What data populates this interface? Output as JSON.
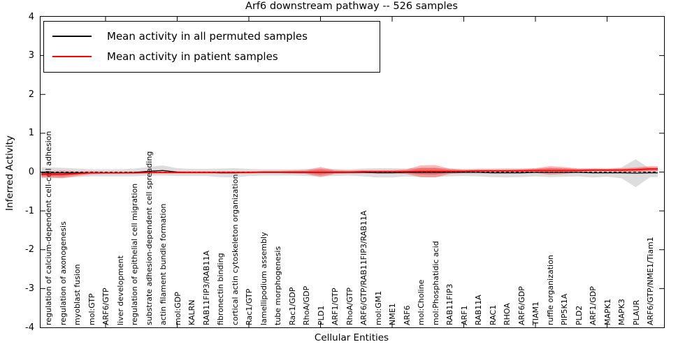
{
  "title": "Arf6 downstream pathway -- 526 samples",
  "y_axis": {
    "label": "Inferred Activity",
    "tick_labels": [
      "4",
      "3",
      "2",
      "1",
      "0",
      "-1",
      "-2",
      "-3",
      "-4"
    ],
    "range": [
      -4,
      4
    ]
  },
  "x_axis": {
    "label": "Cellular Entities"
  },
  "legend": {
    "items": [
      {
        "label": "Mean activity in all permuted samples",
        "color": "#000000"
      },
      {
        "label": "Mean activity in patient samples",
        "color": "#ff0000"
      }
    ]
  },
  "chart_data": {
    "type": "area",
    "subtype": "violin-band-with-mean-lines",
    "title": "Arf6 downstream pathway -- 526 samples",
    "xlabel": "Cellular Entities",
    "ylabel": "Inferred Activity",
    "ylim": [
      -4,
      4
    ],
    "grid": false,
    "legend_position": "upper-left",
    "zero_line": "dashed-black",
    "categories": [
      "regulation of calcium-dependent cell-cell adhesion",
      "regulation of axonogenesis",
      "myoblast fusion",
      "mol:GTP",
      "ARF6/GTP",
      "liver development",
      "regulation of epithelial cell migration",
      "substrate adhesion-dependent cell spreading",
      "actin filament bundle formation",
      "mol:GDP",
      "KALRN",
      "RAB11FIP3/RAB11A",
      "fibronectin binding",
      "cortical actin cytoskeleton organization",
      "Rac1/GTP",
      "lamellipodium assembly",
      "tube morphogenesis",
      "Rac1/GDP",
      "RhoA/GDP",
      "PLD1",
      "ARF1/GTP",
      "RhoA/GTP",
      "ARF6/GTP/RAB11FIP3/RAB11A",
      "mol:GM1",
      "NME1",
      "ARF6",
      "mol:Choline",
      "mol:Phosphatidic acid",
      "RAB11FIP3",
      "ARF1",
      "RAB11A",
      "RAC1",
      "RHOA",
      "ARF6/GDP",
      "TIAM1",
      "ruffle organization",
      "PIP5K1A",
      "PLD2",
      "ARF1/GDP",
      "MAPK1",
      "MAPK3",
      "PLAUR",
      "ARF6/GTP/NME1/Tiam1"
    ],
    "series": [
      {
        "name": "Mean activity in all permuted samples",
        "color": "#000000",
        "values": [
          -0.02,
          -0.02,
          -0.02,
          -0.02,
          -0.02,
          -0.02,
          -0.01,
          0.02,
          0.04,
          0,
          -0.01,
          -0.01,
          -0.02,
          -0.02,
          -0.01,
          -0.01,
          -0.01,
          -0.01,
          -0.01,
          -0.01,
          -0.01,
          -0.01,
          -0.01,
          -0.02,
          -0.02,
          -0.01,
          -0.01,
          -0.01,
          -0.01,
          -0.01,
          -0.01,
          -0.02,
          -0.02,
          -0.02,
          -0.01,
          -0.01,
          -0.01,
          -0.01,
          -0.02,
          -0.02,
          -0.02,
          -0.03,
          -0.02
        ]
      },
      {
        "name": "Mean activity in patient samples",
        "color": "#ff0000",
        "values": [
          -0.06,
          -0.06,
          -0.04,
          -0.02,
          -0.02,
          -0.02,
          -0.02,
          -0.01,
          -0.01,
          -0.01,
          -0.01,
          -0.01,
          -0.01,
          -0.01,
          -0.01,
          0,
          0,
          0,
          0,
          0,
          0,
          0,
          0.01,
          0.01,
          0.01,
          0.01,
          0.02,
          0.02,
          0.02,
          0.02,
          0.03,
          0.03,
          0.03,
          0.03,
          0.04,
          0.04,
          0.04,
          0.04,
          0.05,
          0.05,
          0.05,
          0.06,
          0.08
        ]
      }
    ],
    "violin_bands": [
      {
        "name": "permuted samples distribution",
        "color": "#787878",
        "opacity": 0.25,
        "half_widths": [
          0.14,
          0.13,
          0.11,
          0.09,
          0.09,
          0.09,
          0.1,
          0.11,
          0.13,
          0.1,
          0.09,
          0.09,
          0.11,
          0.12,
          0.09,
          0.08,
          0.08,
          0.08,
          0.09,
          0.1,
          0.09,
          0.08,
          0.1,
          0.12,
          0.12,
          0.1,
          0.12,
          0.12,
          0.1,
          0.09,
          0.1,
          0.11,
          0.12,
          0.11,
          0.1,
          0.12,
          0.11,
          0.1,
          0.12,
          0.1,
          0.14,
          0.36,
          0.11
        ]
      },
      {
        "name": "patient samples distribution",
        "color": "#ff0000",
        "opacity": 0.28,
        "half_widths": [
          0.08,
          0.1,
          0.06,
          0.04,
          0.03,
          0.03,
          0.03,
          0.03,
          0.03,
          0.03,
          0.03,
          0.03,
          0.03,
          0.03,
          0.03,
          0.03,
          0.03,
          0.04,
          0.05,
          0.13,
          0.05,
          0.04,
          0.04,
          0.04,
          0.04,
          0.06,
          0.15,
          0.16,
          0.07,
          0.04,
          0.04,
          0.04,
          0.04,
          0.05,
          0.06,
          0.11,
          0.09,
          0.05,
          0.04,
          0.04,
          0.05,
          0.06,
          0.07
        ]
      }
    ]
  }
}
